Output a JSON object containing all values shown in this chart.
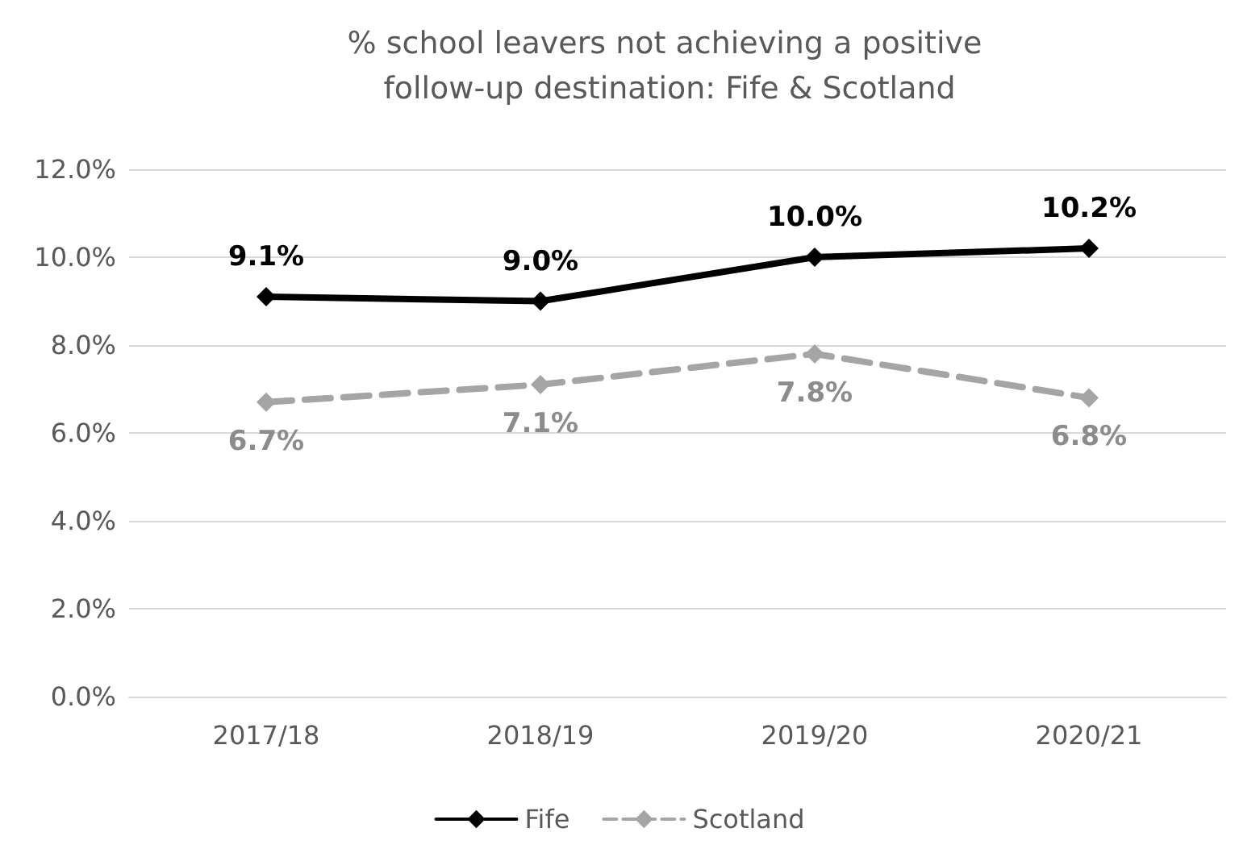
{
  "chart_data": {
    "type": "line",
    "title": "% school leavers not achieving a positive follow-up destination: Fife & Scotland",
    "categories": [
      "2017/18",
      "2018/19",
      "2019/20",
      "2020/21"
    ],
    "series": [
      {
        "name": "Fife",
        "color": "#000000",
        "values": [
          9.1,
          9.0,
          10.0,
          10.2
        ],
        "value_labels": [
          "9.1%",
          "9.0%",
          "10.0%",
          "10.2%"
        ],
        "line_style": "solid",
        "marker": "diamond"
      },
      {
        "name": "Scotland",
        "color": "#a5a5a5",
        "values": [
          6.7,
          7.1,
          7.8,
          6.8
        ],
        "value_labels": [
          "6.7%",
          "7.1%",
          "7.8%",
          "6.8%"
        ],
        "line_style": "dashed",
        "marker": "diamond"
      }
    ],
    "ylim": [
      0,
      12
    ],
    "yticks": [
      {
        "value": 0,
        "label": "0.0%"
      },
      {
        "value": 2,
        "label": "2.0%"
      },
      {
        "value": 4,
        "label": "4.0%"
      },
      {
        "value": 6,
        "label": "6.0%"
      },
      {
        "value": 8,
        "label": "8.0%"
      },
      {
        "value": 10,
        "label": "10.0%"
      },
      {
        "value": 12,
        "label": "12.0%"
      }
    ],
    "grid": "y",
    "legend": "bottom"
  }
}
